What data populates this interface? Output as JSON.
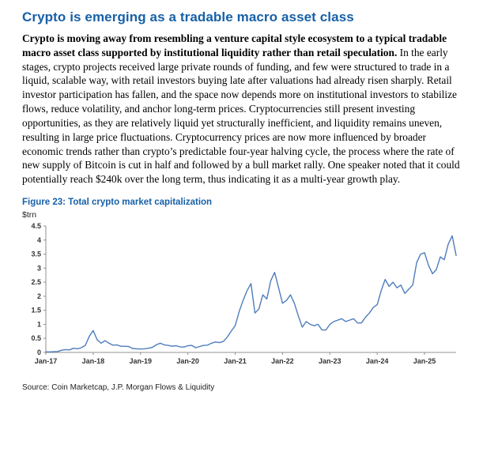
{
  "doc": {
    "title": "Crypto is emerging as a tradable macro asset class",
    "lead_bold": "Crypto is moving away from resembling a venture capital style ecosystem to a typical tradable macro asset class supported by institutional liquidity rather than retail speculation.",
    "body_rest": " In the early stages, crypto projects received large private rounds of funding, and few were structured to trade in a liquid, scalable way, with retail investors buying late after valuations had already risen sharply. Retail investor participation has fallen, and the space now depends more on institutional investors to stabilize flows, reduce volatility, and anchor long-term prices. Cryptocurrencies still present investing opportunities, as they are relatively liquid yet structurally inefficient, and liquidity remains uneven, resulting in large price fluctuations. Cryptocurrency prices are now more influenced by broader economic trends rather than crypto’s predictable four-year halving cycle, the process where the rate of new supply of Bitcoin is cut in half and followed by a bull market rally. One speaker noted that it could potentially reach $240k over the long term, thus indicating it as a multi-year growth play."
  },
  "figure": {
    "caption": "Figure 23: Total crypto market capitalization",
    "unit": "$trn",
    "source": "Source: Coin Marketcap, J.P. Morgan Flows & Liquidity"
  },
  "chart_data": {
    "type": "line",
    "title": "Total crypto market capitalization",
    "ylabel": "$trn",
    "ylim": [
      0,
      4.5
    ],
    "yticks": [
      0,
      0.5,
      1,
      1.5,
      2,
      2.5,
      3,
      3.5,
      4,
      4.5
    ],
    "xticklabels": [
      "Jan-17",
      "Jan-18",
      "Jan-19",
      "Jan-20",
      "Jan-21",
      "Jan-22",
      "Jan-23",
      "Jan-24",
      "Jan-25"
    ],
    "x_start": "2017-01",
    "x_step": "monthly",
    "line_color": "#4f7dbc",
    "grid": false,
    "legend": "none",
    "values": [
      0.02,
      0.02,
      0.025,
      0.035,
      0.08,
      0.1,
      0.09,
      0.15,
      0.13,
      0.17,
      0.25,
      0.57,
      0.78,
      0.45,
      0.33,
      0.42,
      0.33,
      0.26,
      0.27,
      0.22,
      0.22,
      0.21,
      0.14,
      0.13,
      0.12,
      0.13,
      0.15,
      0.18,
      0.27,
      0.33,
      0.27,
      0.25,
      0.22,
      0.24,
      0.2,
      0.19,
      0.24,
      0.25,
      0.17,
      0.21,
      0.25,
      0.26,
      0.33,
      0.37,
      0.35,
      0.39,
      0.55,
      0.76,
      0.95,
      1.45,
      1.85,
      2.2,
      2.45,
      1.4,
      1.55,
      2.05,
      1.9,
      2.55,
      2.85,
      2.3,
      1.75,
      1.85,
      2.05,
      1.75,
      1.3,
      0.9,
      1.1,
      1.0,
      0.95,
      1.0,
      0.8,
      0.8,
      1.0,
      1.1,
      1.15,
      1.2,
      1.1,
      1.15,
      1.2,
      1.05,
      1.05,
      1.25,
      1.4,
      1.6,
      1.7,
      2.2,
      2.6,
      2.35,
      2.5,
      2.3,
      2.4,
      2.1,
      2.25,
      2.4,
      3.2,
      3.5,
      3.55,
      3.1,
      2.8,
      2.95,
      3.4,
      3.3,
      3.85,
      4.15,
      3.45
    ]
  }
}
